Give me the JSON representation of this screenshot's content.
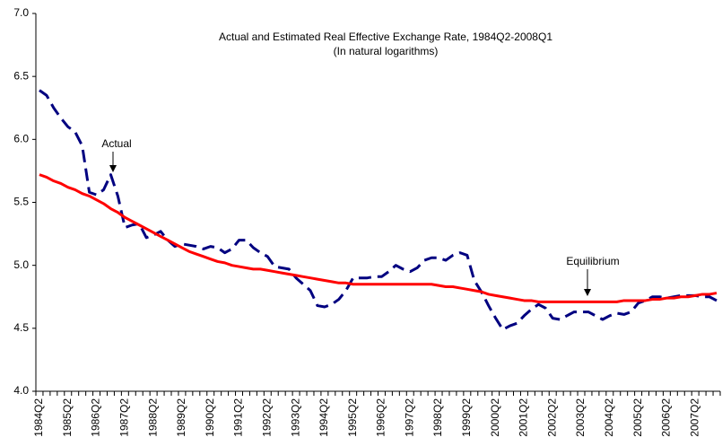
{
  "chart_data": {
    "type": "line",
    "title": "Actual and Estimated Real Effective Exchange Rate, 1984Q2-2008Q1",
    "subtitle": "(In natural logarithms)",
    "annotations": [
      "Actual",
      "Equilibrium"
    ],
    "categories": [
      "1984Q2",
      null,
      null,
      null,
      "1985Q2",
      null,
      null,
      null,
      "1986Q2",
      null,
      null,
      null,
      "1987Q2",
      null,
      null,
      null,
      "1988Q2",
      null,
      null,
      null,
      "1989Q2",
      null,
      null,
      null,
      "1990Q2",
      null,
      null,
      null,
      "1991Q2",
      null,
      null,
      null,
      "1992Q2",
      null,
      null,
      null,
      "1993Q2",
      null,
      null,
      null,
      "1994Q2",
      null,
      null,
      null,
      "1995Q2",
      null,
      null,
      null,
      "1996Q2",
      null,
      null,
      null,
      "1997Q2",
      null,
      null,
      null,
      "1998Q2",
      null,
      null,
      null,
      "1999Q2",
      null,
      null,
      null,
      "2000Q2",
      null,
      null,
      null,
      "2001Q2",
      null,
      null,
      null,
      "2002Q2",
      null,
      null,
      null,
      "2003Q2",
      null,
      null,
      null,
      "2004Q2",
      null,
      null,
      null,
      "2005Q2",
      null,
      null,
      null,
      "2006Q2",
      null,
      null,
      null,
      "2007Q2",
      null,
      null,
      null
    ],
    "series": [
      {
        "color": "#000080",
        "dashed": true,
        "values": [
          6.39,
          6.35,
          6.25,
          6.17,
          6.1,
          6.06,
          5.95,
          5.58,
          5.56,
          5.6,
          5.72,
          5.55,
          5.3,
          5.32,
          5.33,
          5.22,
          5.24,
          5.27,
          5.2,
          5.15,
          5.17,
          5.16,
          5.15,
          5.13,
          5.15,
          5.14,
          5.1,
          5.13,
          5.2,
          5.2,
          5.14,
          5.1,
          5.07,
          4.99,
          4.98,
          4.97,
          4.9,
          4.85,
          4.8,
          4.68,
          4.67,
          4.69,
          4.73,
          4.8,
          4.9,
          4.9,
          4.9,
          4.91,
          4.91,
          4.95,
          5.0,
          4.97,
          4.95,
          4.98,
          5.04,
          5.06,
          5.06,
          5.04,
          5.08,
          5.1,
          5.08,
          4.88,
          4.79,
          4.68,
          4.58,
          4.49,
          4.52,
          4.54,
          4.6,
          4.65,
          4.69,
          4.66,
          4.58,
          4.57,
          4.6,
          4.63,
          4.63,
          4.63,
          4.6,
          4.57,
          4.6,
          4.62,
          4.61,
          4.63,
          4.7,
          4.72,
          4.75,
          4.75,
          4.74,
          4.75,
          4.76,
          4.76,
          4.76,
          4.75,
          4.75,
          4.72
        ]
      },
      {
        "color": "#ff0000",
        "dashed": false,
        "values": [
          5.72,
          5.7,
          5.67,
          5.65,
          5.62,
          5.6,
          5.57,
          5.55,
          5.52,
          5.49,
          5.45,
          5.42,
          5.38,
          5.35,
          5.32,
          5.29,
          5.26,
          5.23,
          5.2,
          5.17,
          5.14,
          5.11,
          5.09,
          5.07,
          5.05,
          5.03,
          5.02,
          5.0,
          4.99,
          4.98,
          4.97,
          4.97,
          4.96,
          4.95,
          4.94,
          4.93,
          4.92,
          4.91,
          4.9,
          4.89,
          4.88,
          4.87,
          4.86,
          4.86,
          4.85,
          4.85,
          4.85,
          4.85,
          4.85,
          4.85,
          4.85,
          4.85,
          4.85,
          4.85,
          4.85,
          4.85,
          4.84,
          4.83,
          4.83,
          4.82,
          4.81,
          4.8,
          4.79,
          4.77,
          4.76,
          4.75,
          4.74,
          4.73,
          4.72,
          4.72,
          4.71,
          4.71,
          4.71,
          4.71,
          4.71,
          4.71,
          4.71,
          4.71,
          4.71,
          4.71,
          4.71,
          4.71,
          4.72,
          4.72,
          4.72,
          4.72,
          4.73,
          4.73,
          4.74,
          4.74,
          4.75,
          4.75,
          4.76,
          4.77,
          4.77,
          4.78
        ]
      }
    ],
    "ylim": [
      4,
      7
    ],
    "yticks": [
      {
        "value": 4,
        "label": "4.0"
      },
      {
        "value": 4.5,
        "label": "4.5"
      },
      {
        "value": 5,
        "label": "5.0"
      },
      {
        "value": 5.5,
        "label": "5.5"
      },
      {
        "value": 6,
        "label": "6.0"
      },
      {
        "value": 6.5,
        "label": "6.5"
      },
      {
        "value": 7,
        "label": "7.0"
      }
    ],
    "grid": false
  }
}
